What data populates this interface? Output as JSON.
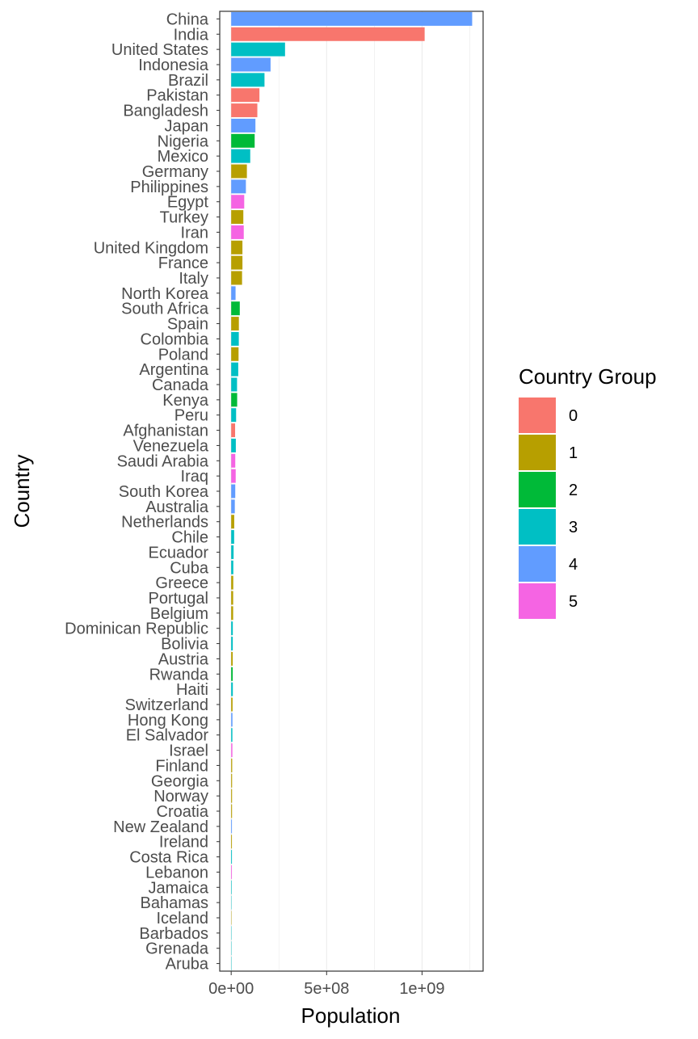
{
  "chart_data": {
    "type": "bar",
    "orientation": "horizontal",
    "xlabel": "Population",
    "ylabel": "Country",
    "xlim": [
      -60000000,
      1320000000
    ],
    "x_ticks": [
      0,
      500000000,
      1000000000
    ],
    "x_tick_labels": [
      "0e+00",
      "5e+08",
      "1e+09"
    ],
    "grid": true,
    "legend": {
      "title": "Country Group",
      "placement": "right",
      "entries": [
        {
          "label": "0",
          "color": "#F8766D"
        },
        {
          "label": "1",
          "color": "#B79F00"
        },
        {
          "label": "2",
          "color": "#00BA38"
        },
        {
          "label": "3",
          "color": "#00BFC4"
        },
        {
          "label": "4",
          "color": "#619CFF"
        },
        {
          "label": "5",
          "color": "#F564E3"
        }
      ]
    },
    "categories": [
      "China",
      "India",
      "United States",
      "Indonesia",
      "Brazil",
      "Pakistan",
      "Bangladesh",
      "Japan",
      "Nigeria",
      "Mexico",
      "Germany",
      "Philippines",
      "Egypt",
      "Turkey",
      "Iran",
      "United Kingdom",
      "France",
      "Italy",
      "North Korea",
      "South Africa",
      "Spain",
      "Colombia",
      "Poland",
      "Argentina",
      "Canada",
      "Kenya",
      "Peru",
      "Afghanistan",
      "Venezuela",
      "Saudi Arabia",
      "Iraq",
      "South Korea",
      "Australia",
      "Netherlands",
      "Chile",
      "Ecuador",
      "Cuba",
      "Greece",
      "Portugal",
      "Belgium",
      "Dominican Republic",
      "Bolivia",
      "Austria",
      "Rwanda",
      "Haiti",
      "Switzerland",
      "Hong Kong",
      "El Salvador",
      "Israel",
      "Finland",
      "Georgia",
      "Norway",
      "Croatia",
      "New Zealand",
      "Ireland",
      "Costa Rica",
      "Lebanon",
      "Jamaica",
      "Bahamas",
      "Iceland",
      "Barbados",
      "Grenada",
      "Aruba"
    ],
    "values": [
      1262645000,
      1013662000,
      282172000,
      206265000,
      174505000,
      148000000,
      137000000,
      127000000,
      123000000,
      99800000,
      82200000,
      77000000,
      68300000,
      63600000,
      65900000,
      58900000,
      59000000,
      56900000,
      22900000,
      45000000,
      40200000,
      39900000,
      38600000,
      36900000,
      30700000,
      31300000,
      25800000,
      20500000,
      24300000,
      21400000,
      23600000,
      21300000,
      19000000,
      15900000,
      15400000,
      12600000,
      11100000,
      10800000,
      10300000,
      10200000,
      8500000,
      8300000,
      8000000,
      8000000,
      8600000,
      7200000,
      6700000,
      6300000,
      6300000,
      5200000,
      4700000,
      4500000,
      4400000,
      3900000,
      3800000,
      3900000,
      3700000,
      2600000,
      300000,
      280000,
      270000,
      100000,
      90000
    ],
    "groups": [
      4,
      0,
      3,
      4,
      3,
      0,
      0,
      4,
      2,
      3,
      1,
      4,
      5,
      1,
      5,
      1,
      1,
      1,
      4,
      2,
      1,
      3,
      1,
      3,
      3,
      2,
      3,
      0,
      3,
      5,
      5,
      4,
      4,
      1,
      3,
      3,
      3,
      1,
      1,
      1,
      3,
      3,
      1,
      2,
      3,
      1,
      4,
      3,
      5,
      1,
      1,
      1,
      1,
      4,
      1,
      3,
      5,
      3,
      3,
      1,
      3,
      3,
      3
    ]
  }
}
